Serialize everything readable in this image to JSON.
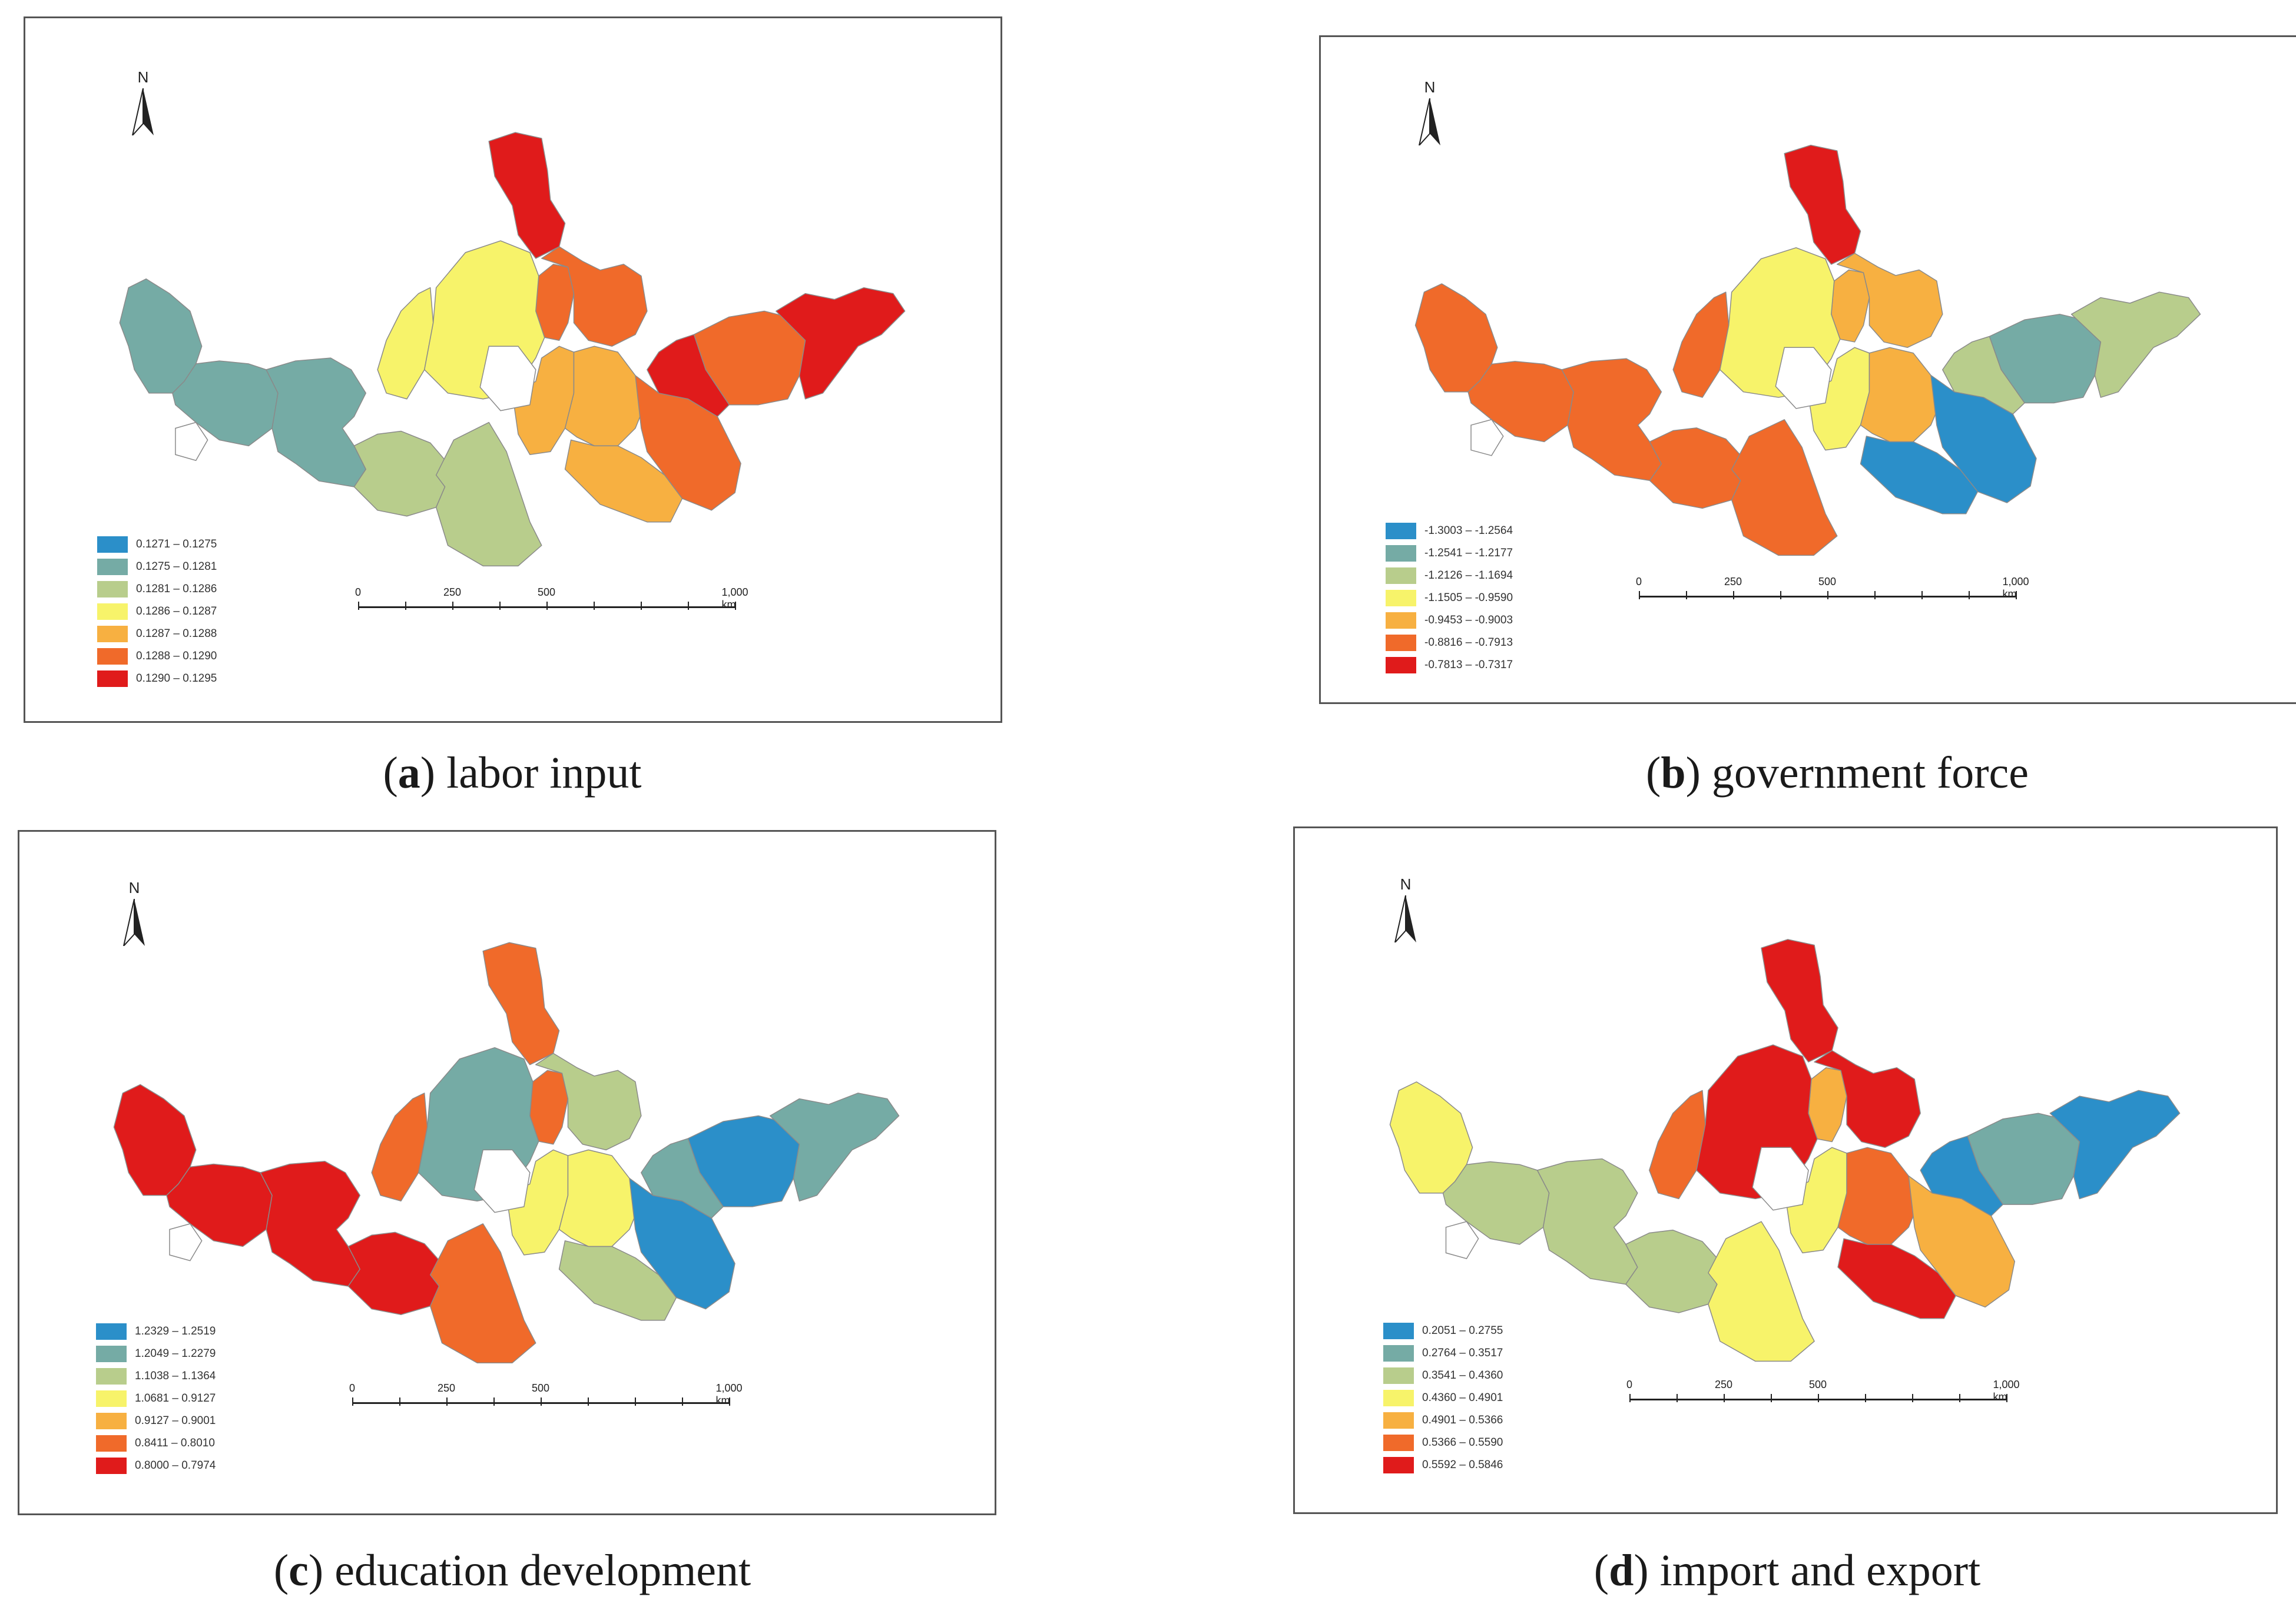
{
  "panels": [
    {
      "id": "a",
      "caption": {
        "letter": "a",
        "text": "labor input"
      },
      "north_label": "N",
      "scale": {
        "labels": [
          "0",
          "250",
          "500",
          "1,000 km"
        ]
      },
      "legend": [
        {
          "label": "0.1271 – 0.1275",
          "color": "#2b8fc9"
        },
        {
          "label": "0.1275 – 0.1281",
          "color": "#75aba5"
        },
        {
          "label": "0.1281 – 0.1286",
          "color": "#b8cd8c"
        },
        {
          "label": "0.1286 – 0.1287",
          "color": "#f7f36a"
        },
        {
          "label": "0.1287 – 0.1288",
          "color": "#f7b041"
        },
        {
          "label": "0.1288 – 0.1290",
          "color": "#f06a2a"
        },
        {
          "label": "0.1290 – 0.1295",
          "color": "#e01b1b"
        }
      ],
      "region_classes": [
        1,
        1,
        1,
        2,
        3,
        2,
        6,
        5,
        4,
        5,
        3,
        4,
        4,
        5,
        5,
        6,
        6
      ]
    },
    {
      "id": "b",
      "caption": {
        "letter": "b",
        "text": "government force"
      },
      "north_label": "N",
      "scale": {
        "labels": [
          "0",
          "250",
          "500",
          "1,000 km"
        ]
      },
      "legend": [
        {
          "label": "-1.3003 – -1.2564",
          "color": "#2b8fc9"
        },
        {
          "label": "-1.2541 – -1.2177",
          "color": "#75aba5"
        },
        {
          "label": "-1.2126 – -1.1694",
          "color": "#b8cd8c"
        },
        {
          "label": "-1.1505 – -0.9590",
          "color": "#f7f36a"
        },
        {
          "label": "-0.9453 – -0.9003",
          "color": "#f7b041"
        },
        {
          "label": "-0.8816 – -0.7913",
          "color": "#f06a2a"
        },
        {
          "label": "-0.7813 – -0.7317",
          "color": "#e01b1b"
        }
      ],
      "region_classes": [
        5,
        5,
        5,
        5,
        5,
        5,
        6,
        4,
        3,
        4,
        3,
        4,
        0,
        0,
        1,
        2,
        2
      ]
    },
    {
      "id": "c",
      "caption": {
        "letter": "c",
        "text": "education development"
      },
      "north_label": "N",
      "scale": {
        "labels": [
          "0",
          "250",
          "500",
          "1,000 km"
        ]
      },
      "legend": [
        {
          "label": "1.2329 – 1.2519",
          "color": "#2b8fc9"
        },
        {
          "label": "1.2049 – 1.2279",
          "color": "#75aba5"
        },
        {
          "label": "1.1038 – 1.1364",
          "color": "#b8cd8c"
        },
        {
          "label": "1.0681 – 0.9127",
          "color": "#f7f36a"
        },
        {
          "label": "0.9127 – 0.9001",
          "color": "#f7b041"
        },
        {
          "label": "0.8411 – 0.8010",
          "color": "#f06a2a"
        },
        {
          "label": "0.8000 – 0.7974",
          "color": "#e01b1b"
        }
      ],
      "region_classes": [
        6,
        6,
        6,
        6,
        5,
        5,
        5,
        5,
        3,
        2,
        1,
        3,
        2,
        0,
        0,
        1,
        1
      ]
    },
    {
      "id": "d",
      "caption": {
        "letter": "d",
        "text": "import and export"
      },
      "north_label": "N",
      "scale": {
        "labels": [
          "0",
          "250",
          "500",
          "1,000 km"
        ]
      },
      "legend": [
        {
          "label": "0.2051 – 0.2755",
          "color": "#2b8fc9"
        },
        {
          "label": "0.2764 – 0.3517",
          "color": "#75aba5"
        },
        {
          "label": "0.3541 – 0.4360",
          "color": "#b8cd8c"
        },
        {
          "label": "0.4360 – 0.4901",
          "color": "#f7f36a"
        },
        {
          "label": "0.4901 – 0.5366",
          "color": "#f7b041"
        },
        {
          "label": "0.5366 – 0.5590",
          "color": "#f06a2a"
        },
        {
          "label": "0.5592 – 0.5846",
          "color": "#e01b1b"
        }
      ],
      "region_classes": [
        3,
        2,
        2,
        2,
        5,
        3,
        6,
        4,
        3,
        6,
        6,
        5,
        6,
        4,
        1,
        0,
        0
      ]
    }
  ]
}
